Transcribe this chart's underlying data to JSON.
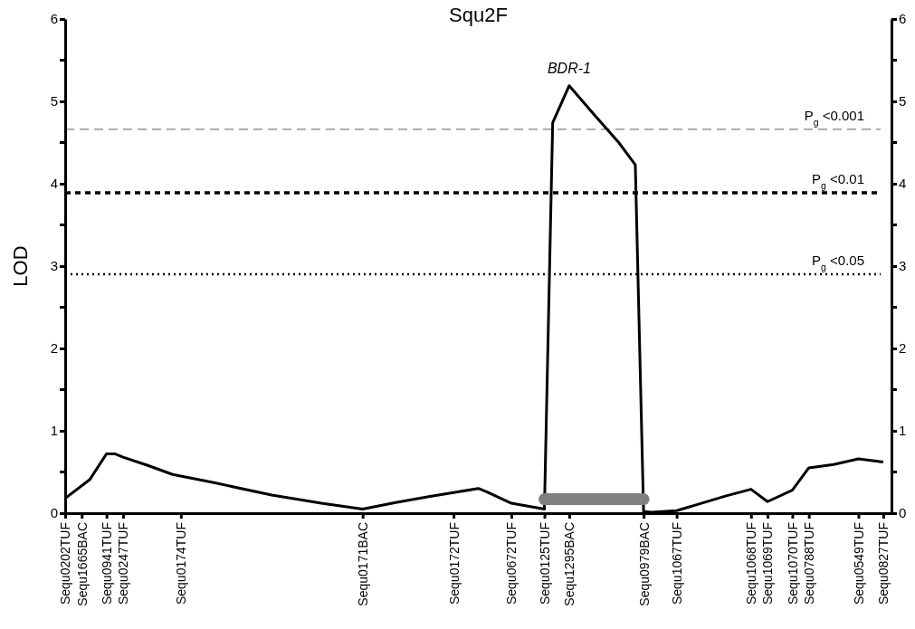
{
  "chart_data": {
    "type": "line",
    "title": "Squ2F",
    "ylabel": "LOD",
    "categories": [
      "Sequ0202TUF",
      null,
      "Sequ1665BAC",
      null,
      null,
      "Sequ0941TUF",
      null,
      "Sequ0247TUF",
      null,
      null,
      null,
      null,
      null,
      null,
      "Sequ0174TUF",
      null,
      null,
      null,
      null,
      null,
      null,
      null,
      null,
      null,
      null,
      null,
      null,
      null,
      null,
      null,
      null,
      null,
      null,
      null,
      null,
      null,
      "Sequ0171BAC",
      null,
      null,
      null,
      null,
      null,
      null,
      null,
      null,
      null,
      null,
      "Sequ0172TUF",
      null,
      null,
      null,
      null,
      null,
      null,
      "Sequ0672TUF",
      null,
      null,
      null,
      "Sequ0125TUF",
      null,
      null,
      "Sequ1295BAC",
      null,
      null,
      null,
      null,
      null,
      null,
      null,
      null,
      "Sequ0979BAC",
      null,
      null,
      null,
      "Sequ1067TUF",
      null,
      null,
      null,
      null,
      null,
      null,
      null,
      null,
      "Sequ1068TUF",
      null,
      "Sequ1069TUF",
      null,
      null,
      "Sequ1070TUF",
      null,
      "Sequ0788TUF",
      null,
      null,
      null,
      null,
      null,
      "Sequ0549TUF",
      null,
      null,
      "Sequ0827TUF",
      null
    ],
    "ylim": [
      0,
      6
    ],
    "yticks": [
      0,
      {
        "value": 0.5,
        "label": null
      },
      1,
      {
        "value": 1.5,
        "label": null
      },
      2,
      {
        "value": 2.5,
        "label": null
      },
      3,
      {
        "value": 3.5,
        "label": null
      },
      4,
      {
        "value": 4.5,
        "label": null
      },
      5,
      {
        "value": 5.5,
        "label": null
      },
      6
    ],
    "y2lim": [
      0,
      6
    ],
    "y2ticks": [
      0,
      {
        "value": 0.5,
        "label": null
      },
      1,
      {
        "value": 1.5,
        "label": null
      },
      2,
      {
        "value": 2.5,
        "label": null
      },
      3,
      {
        "value": 3.5,
        "label": null
      },
      4,
      {
        "value": 4.5,
        "label": null
      },
      5,
      {
        "value": 5.5,
        "label": null
      },
      6
    ],
    "series": [
      {
        "color": "#000000",
        "values": [
          0.18,
          null,
          null,
          0.41,
          null,
          0.72,
          0.72,
          0.68,
          null,
          null,
          0.58,
          null,
          null,
          0.47,
          null,
          null,
          null,
          null,
          0.37,
          null,
          null,
          null,
          null,
          null,
          null,
          0.22,
          null,
          null,
          null,
          null,
          null,
          0.12,
          null,
          null,
          null,
          null,
          0.05,
          null,
          null,
          null,
          0.13,
          null,
          null,
          null,
          0.2,
          null,
          null,
          0.25,
          null,
          null,
          0.3,
          0.26,
          null,
          null,
          0.12,
          null,
          null,
          null,
          0.05,
          4.74,
          null,
          5.19,
          null,
          null,
          4.84,
          null,
          null,
          4.5,
          null,
          4.23,
          0.02,
          0.01,
          null,
          null,
          0.03,
          null,
          null,
          null,
          null,
          null,
          0.21,
          null,
          null,
          0.29,
          null,
          0.14,
          null,
          null,
          0.28,
          null,
          0.55,
          null,
          null,
          0.59,
          null,
          null,
          0.66,
          null,
          null,
          0.62,
          null
        ]
      },
      {
        "color": "#808080",
        "values": [
          null,
          null,
          null,
          null,
          null,
          null,
          null,
          null,
          null,
          null,
          null,
          null,
          null,
          null,
          null,
          null,
          null,
          null,
          null,
          null,
          null,
          null,
          null,
          null,
          null,
          null,
          null,
          null,
          null,
          null,
          null,
          null,
          null,
          null,
          null,
          null,
          null,
          null,
          null,
          null,
          null,
          null,
          null,
          null,
          null,
          null,
          null,
          null,
          null,
          null,
          null,
          null,
          null,
          null,
          null,
          null,
          null,
          null,
          0.17,
          null,
          null,
          null,
          null,
          null,
          null,
          null,
          null,
          null,
          null,
          null,
          0.17,
          null,
          null,
          null,
          null,
          null,
          null,
          null,
          null,
          null,
          null,
          null,
          null,
          null,
          null,
          null,
          null,
          null,
          null,
          null,
          null,
          null,
          null,
          null,
          null,
          null,
          null,
          null,
          null,
          null,
          null
        ]
      }
    ],
    "ref_lines": [
      {
        "axis": "y",
        "value": 4.66,
        "label": "P$_{g}$ <0.001",
        "color": "#808080",
        "line_style": "dashed"
      },
      {
        "axis": "y",
        "value": 3.89,
        "label": "P$_{g}$ <0.01",
        "color": "#000000",
        "line_style": "dashed"
      },
      {
        "axis": "y",
        "value": 2.9,
        "label": "P$_{g}$ <0.05",
        "color": "#000000",
        "line_style": "dotted"
      }
    ],
    "annotations": [
      {
        "text": "BDR-1",
        "x": "Sequ1295BAC",
        "y": 5.19
      }
    ],
    "grid": false,
    "marker": "none",
    "line_style": "solid"
  }
}
